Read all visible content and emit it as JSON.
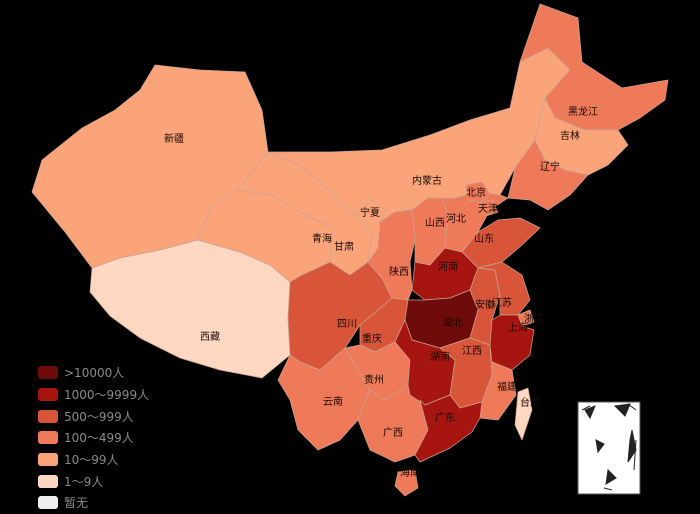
{
  "colors": {
    "background": "#000000",
    "level_10000": "#6f0b0a",
    "level_1000": "#a6150f",
    "level_500": "#d8553a",
    "level_100": "#ee7a5a",
    "level_10": "#fba47a",
    "level_1": "#fed7c2",
    "level_0": "#efefef"
  },
  "legend": [
    {
      "label": ">10000人",
      "level": "level_10000"
    },
    {
      "label": "1000～9999人",
      "level": "level_1000"
    },
    {
      "label": "500～999人",
      "level": "level_500"
    },
    {
      "label": "100～499人",
      "level": "level_100"
    },
    {
      "label": "10～99人",
      "level": "level_10"
    },
    {
      "label": "1～9人",
      "level": "level_1"
    },
    {
      "label": "暂无",
      "level": "level_0"
    }
  ],
  "provinces": [
    {
      "name": "新疆",
      "level": "level_10"
    },
    {
      "name": "西藏",
      "level": "level_1"
    },
    {
      "name": "青海",
      "level": "level_10"
    },
    {
      "name": "甘肃",
      "level": "level_10"
    },
    {
      "name": "内蒙古",
      "level": "level_10"
    },
    {
      "name": "宁夏",
      "level": "level_10"
    },
    {
      "name": "四川",
      "level": "level_500"
    },
    {
      "name": "重庆",
      "level": "level_500"
    },
    {
      "name": "云南",
      "level": "level_100"
    },
    {
      "name": "贵州",
      "level": "level_100"
    },
    {
      "name": "陕西",
      "level": "level_100"
    },
    {
      "name": "山西",
      "level": "level_100"
    },
    {
      "name": "河北",
      "level": "level_100"
    },
    {
      "name": "北京",
      "level": "level_100"
    },
    {
      "name": "天津",
      "level": "level_100"
    },
    {
      "name": "辽宁",
      "level": "level_100"
    },
    {
      "name": "吉林",
      "level": "level_10"
    },
    {
      "name": "黑龙江",
      "level": "level_100"
    },
    {
      "name": "山东",
      "level": "level_500"
    },
    {
      "name": "河南",
      "level": "level_1000"
    },
    {
      "name": "湖北",
      "level": "level_10000"
    },
    {
      "name": "湖南",
      "level": "level_1000"
    },
    {
      "name": "江西",
      "level": "level_500"
    },
    {
      "name": "安徽",
      "level": "level_500"
    },
    {
      "name": "江苏",
      "level": "level_500"
    },
    {
      "name": "浙江",
      "level": "level_1000"
    },
    {
      "name": "上海",
      "level": "level_100"
    },
    {
      "name": "福建",
      "level": "level_100"
    },
    {
      "name": "广东",
      "level": "level_1000"
    },
    {
      "name": "广西",
      "level": "level_100"
    },
    {
      "name": "海南",
      "level": "level_100"
    },
    {
      "name": "台湾",
      "level": "level_1"
    }
  ]
}
